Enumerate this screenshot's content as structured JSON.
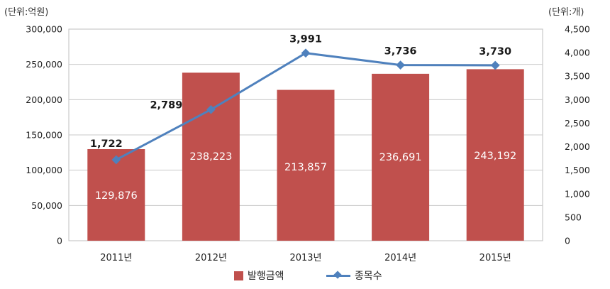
{
  "chart_data": {
    "type": "bar+line",
    "categories": [
      "2011년",
      "2012년",
      "2013년",
      "2014년",
      "2015년"
    ],
    "series": [
      {
        "name": "발행금액",
        "type": "bar",
        "axis": "left",
        "color": "#c0504d",
        "values": [
          129876,
          238223,
          213857,
          236691,
          243192
        ],
        "labels": [
          "129,876",
          "238,223",
          "213,857",
          "236,691",
          "243,192"
        ]
      },
      {
        "name": "종목수",
        "type": "line",
        "axis": "right",
        "color": "#4f81bd",
        "values": [
          1722,
          2789,
          3991,
          3736,
          3730
        ],
        "labels": [
          "1,722",
          "2,789",
          "3,991",
          "3,736",
          "3,730"
        ]
      }
    ],
    "left_axis": {
      "unit_label": "(단위:억원)",
      "ylim": [
        0,
        300000
      ],
      "ticks": [
        "0",
        "50,000",
        "100,000",
        "150,000",
        "200,000",
        "250,000",
        "300,000"
      ]
    },
    "right_axis": {
      "unit_label": "(단위:개)",
      "ylim": [
        0,
        4500
      ],
      "ticks": [
        "0",
        "500",
        "1,000",
        "1,500",
        "2,000",
        "2,500",
        "3,000",
        "3,500",
        "4,000",
        "4,500"
      ]
    },
    "grid": true,
    "legend": "bottom"
  }
}
